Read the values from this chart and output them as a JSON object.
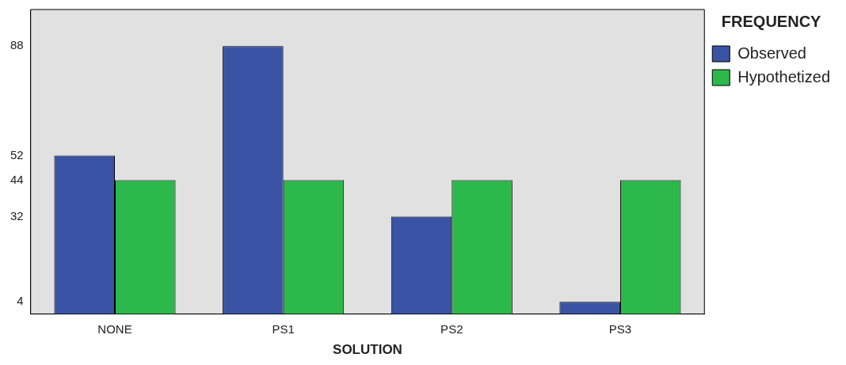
{
  "chart_data": {
    "type": "bar",
    "xlabel": "SOLUTION",
    "legend_title": "FREQUENCY",
    "categories": [
      "NONE",
      "PS1",
      "PS2",
      "PS3"
    ],
    "series": [
      {
        "name": "Observed",
        "color": "#3a53a4",
        "values": [
          52,
          88,
          32,
          4
        ]
      },
      {
        "name": "Hypothetized",
        "color": "#2db84c",
        "values": [
          44,
          44,
          44,
          44
        ]
      }
    ],
    "ylim": [
      0,
      100
    ],
    "yticks": [
      4,
      32,
      44,
      52,
      88
    ],
    "grid": false,
    "legend": "right"
  }
}
